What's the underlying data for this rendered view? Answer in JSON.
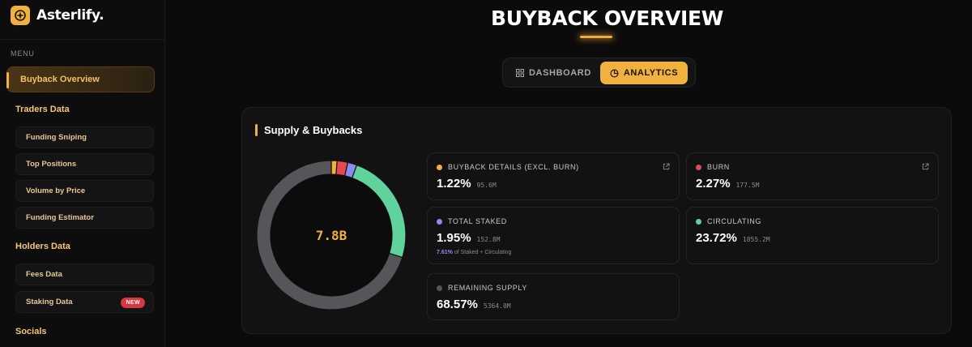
{
  "brand": {
    "name": "Asterlify."
  },
  "sidebar": {
    "menu_label": "MENU",
    "active_item": "Buyback Overview",
    "sections": [
      {
        "title": "Traders Data",
        "items": [
          "Funding Sniping",
          "Top Positions",
          "Volume by Price",
          "Funding Estimator"
        ]
      },
      {
        "title": "Holders Data",
        "items": [
          "Fees Data",
          "Staking Data"
        ]
      },
      {
        "title": "Socials",
        "items": []
      }
    ],
    "new_badge": "NEW"
  },
  "header": {
    "title": "BUYBACK OVERVIEW"
  },
  "tabs": [
    {
      "label": "DASHBOARD",
      "icon": "grid-icon",
      "active": false
    },
    {
      "label": "ANALYTICS",
      "icon": "chart-pie-icon",
      "active": true
    }
  ],
  "panel": {
    "title": "Supply & Buybacks",
    "total": "7.8B",
    "stats": [
      {
        "label": "BUYBACK DETAILS (EXCL. BURN)",
        "pct": "1.22%",
        "amount": "95.6M",
        "color": "#f0b13e",
        "external_link": true
      },
      {
        "label": "BURN",
        "pct": "2.27%",
        "amount": "177.5M",
        "color": "#e5484d",
        "external_link": true
      },
      {
        "label": "TOTAL STAKED",
        "pct": "1.95%",
        "amount": "152.8M",
        "color": "#8b8cf0",
        "note_value": "7.61%",
        "note_text": "of Staked + Circulating"
      },
      {
        "label": "CIRCULATING",
        "pct": "23.72%",
        "amount": "1855.2M",
        "color": "#5fd39b"
      },
      {
        "label": "REMAINING SUPPLY",
        "pct": "68.57%",
        "amount": "5364.0M",
        "color": "#55555a"
      }
    ]
  },
  "chart_data": {
    "type": "pie",
    "categories": [
      "Buyback Details (excl. Burn)",
      "Burn",
      "Total Staked",
      "Circulating",
      "Remaining Supply"
    ],
    "values": [
      1.22,
      2.27,
      1.95,
      23.72,
      68.57
    ],
    "colors": [
      "#f0b13e",
      "#e5484d",
      "#8b8cf0",
      "#5fd39b",
      "#55555a"
    ]
  }
}
